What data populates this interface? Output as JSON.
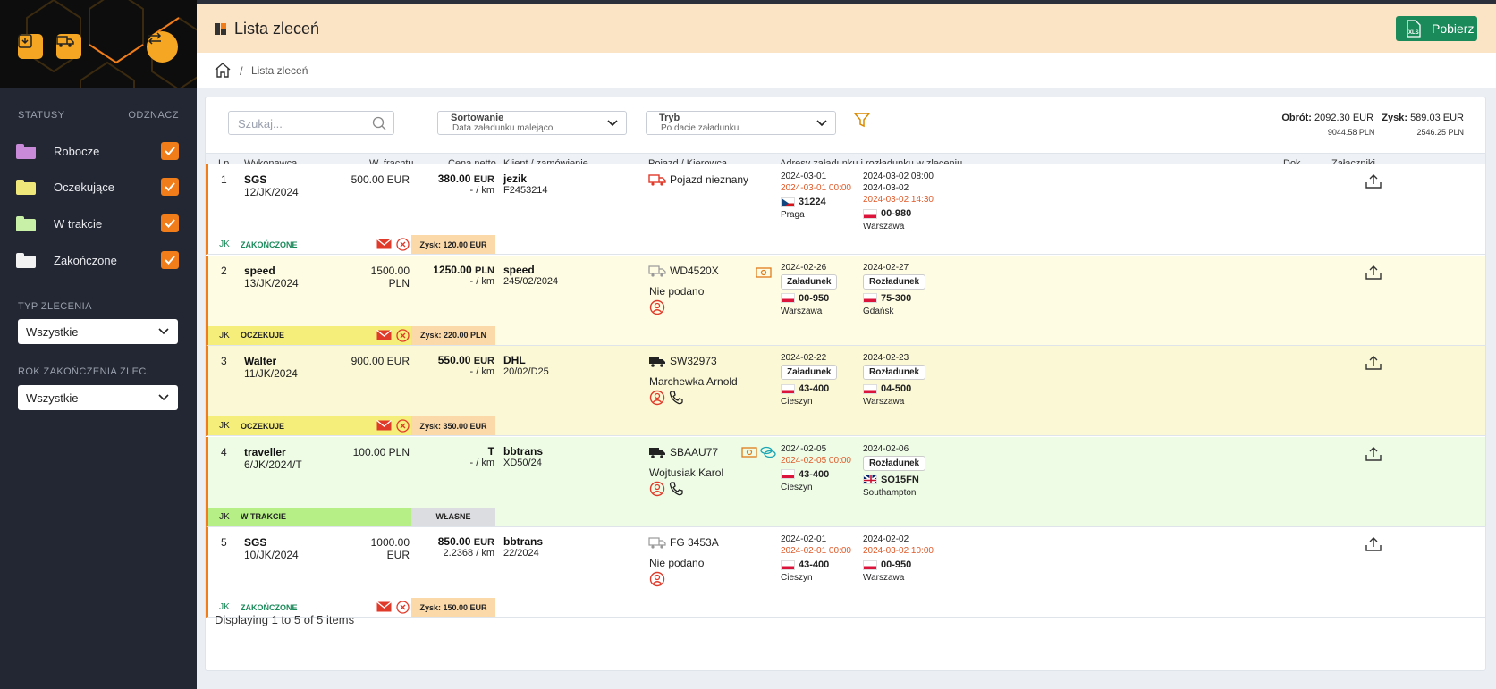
{
  "sidebar": {
    "statuses_label": "STATUSY",
    "mark_label": "ODZNACZ",
    "statuses": [
      {
        "label": "Robocze",
        "color": "#c98bd9"
      },
      {
        "label": "Oczekujące",
        "color": "#f0e77a"
      },
      {
        "label": "W trakcie",
        "color": "#c8f0a6"
      },
      {
        "label": "Zakończone",
        "color": "#f2f2f2"
      }
    ],
    "order_type_label": "TYP ZLECENIA",
    "order_type_value": "Wszystkie",
    "year_label": "ROK ZAKOŃCZENIA ZLEC.",
    "year_value": "Wszystkie"
  },
  "header": {
    "title": "Lista zleceń",
    "download_label": "Pobierz",
    "xls": "XLS"
  },
  "breadcrumb": {
    "current": "Lista zleceń",
    "sep": "/"
  },
  "toolbar": {
    "search_placeholder": "Szukaj...",
    "sort_label": "Sortowanie",
    "sort_value": "Data załadunku malejąco",
    "mode_label": "Tryb",
    "mode_value": "Po dacie załadunku",
    "turnover_label": "Obrót:",
    "turnover_eur": "2092.30 EUR",
    "turnover_pln": "9044.58 PLN",
    "profit_label": "Zysk:",
    "profit_eur": "589.03 EUR",
    "profit_pln": "2546.25 PLN"
  },
  "columns": [
    "Lp.",
    "Wykonawca",
    "W. frachtu",
    "Cena netto",
    "Klient / zamówienie",
    "Pojazd / Kierowca",
    "Adresy załadunku i rozładunku w zleceniu",
    "Dok.",
    "Załączniki"
  ],
  "rows": [
    {
      "lp": "1",
      "carrier": "SGS",
      "number": "12/JK/2024",
      "freight": "500.00 EUR",
      "price": "380.00",
      "cur": "EUR",
      "perkm": "- / km",
      "client": "jezik",
      "order": "F2453214",
      "vehicle": "Pojazd nieznany",
      "driver": "",
      "load_date": "2024-03-01",
      "load_date2": "2024-03-01 00:00",
      "load_tag": "",
      "load_code": "31224",
      "load_city": "Praga",
      "load_flag": "cz",
      "unload_date": "2024-03-02 08:00",
      "unload_date2": "2024-03-02",
      "unload_date3": "2024-03-02 14:30",
      "unload_tag": "",
      "unload_code": "00-980",
      "unload_city": "Warszawa",
      "unload_flag": "pl",
      "initials": "JK",
      "status": "ZAKOŃCZONE",
      "profit": "Zysk: 120.00 EUR",
      "bg": "#ffffff",
      "strip": "#ffffff",
      "status_color": "#1b8a5a"
    },
    {
      "lp": "2",
      "carrier": "speed",
      "number": "13/JK/2024",
      "freight": "1500.00 PLN",
      "price": "1250.00",
      "cur": "PLN",
      "perkm": "- / km",
      "client": "speed",
      "order": "245/02/2024",
      "vehicle": "WD4520X",
      "driver": "Nie podano",
      "load_date": "2024-02-26",
      "load_date2": "",
      "load_tag": "Załadunek",
      "load_code": "00-950",
      "load_city": "Warszawa",
      "load_flag": "pl",
      "unload_date": "2024-02-27",
      "unload_date2": "",
      "unload_date3": "",
      "unload_tag": "Rozładunek",
      "unload_code": "75-300",
      "unload_city": "Gdańsk",
      "unload_flag": "pl",
      "initials": "JK",
      "status": "OCZEKUJE",
      "profit": "Zysk: 220.00 PLN",
      "bg": "#fefce3",
      "strip": "#f5ee7a",
      "status_color": "#222"
    },
    {
      "lp": "3",
      "carrier": "Walter",
      "number": "11/JK/2024",
      "freight": "900.00 EUR",
      "price": "550.00",
      "cur": "EUR",
      "perkm": "- / km",
      "client": "DHL",
      "order": "20/02/D25",
      "vehicle": "SW32973",
      "driver": "Marchewka Arnold",
      "load_date": "2024-02-22",
      "load_date2": "",
      "load_tag": "Załadunek",
      "load_code": "43-400",
      "load_city": "Cieszyn",
      "load_flag": "pl",
      "unload_date": "2024-02-23",
      "unload_date2": "",
      "unload_date3": "",
      "unload_tag": "Rozładunek",
      "unload_code": "04-500",
      "unload_city": "Warszawa",
      "unload_flag": "pl",
      "initials": "JK",
      "status": "OCZEKUJE",
      "profit": "Zysk: 350.00 EUR",
      "bg": "#fbf8d5",
      "strip": "#f5ee7a",
      "status_color": "#222"
    },
    {
      "lp": "4",
      "carrier": "traveller",
      "number": "6/JK/2024/T",
      "freight": "100.00 PLN",
      "price": "T",
      "cur": "",
      "perkm": "- / km",
      "client": "bbtrans",
      "order": "XD50/24",
      "vehicle": "SBAAU77",
      "driver": "Wojtusiak Karol",
      "load_date": "2024-02-05",
      "load_date2": "2024-02-05 00:00",
      "load_tag": "",
      "load_code": "43-400",
      "load_city": "Cieszyn",
      "load_flag": "pl",
      "unload_date": "2024-02-06",
      "unload_date2": "",
      "unload_date3": "",
      "unload_tag": "Rozładunek",
      "unload_code": "SO15FN",
      "unload_city": "Southampton",
      "unload_flag": "gb",
      "initials": "JK",
      "status": "W TRAKCIE",
      "profit": "WŁASNE",
      "bg": "#eefce6",
      "strip": "#b6ef85",
      "status_color": "#222"
    },
    {
      "lp": "5",
      "carrier": "SGS",
      "number": "10/JK/2024",
      "freight": "1000.00 EUR",
      "price": "850.00",
      "cur": "EUR",
      "perkm": "2.2368 / km",
      "client": "bbtrans",
      "order": "22/2024",
      "vehicle": "FG 3453A",
      "driver": "Nie podano",
      "load_date": "2024-02-01",
      "load_date2": "2024-02-01 00:00",
      "load_tag": "",
      "load_code": "43-400",
      "load_city": "Cieszyn",
      "load_flag": "pl",
      "unload_date": "2024-02-02",
      "unload_date2": "2024-03-02 10:00",
      "unload_date3": "",
      "unload_tag": "",
      "unload_code": "00-950",
      "unload_city": "Warszawa",
      "unload_flag": "pl",
      "initials": "JK",
      "status": "ZAKOŃCZONE",
      "profit": "Zysk: 150.00 EUR",
      "bg": "#ffffff",
      "strip": "#ffffff",
      "status_color": "#1b8a5a"
    }
  ],
  "footer": "Displaying 1 to 5 of 5 items"
}
